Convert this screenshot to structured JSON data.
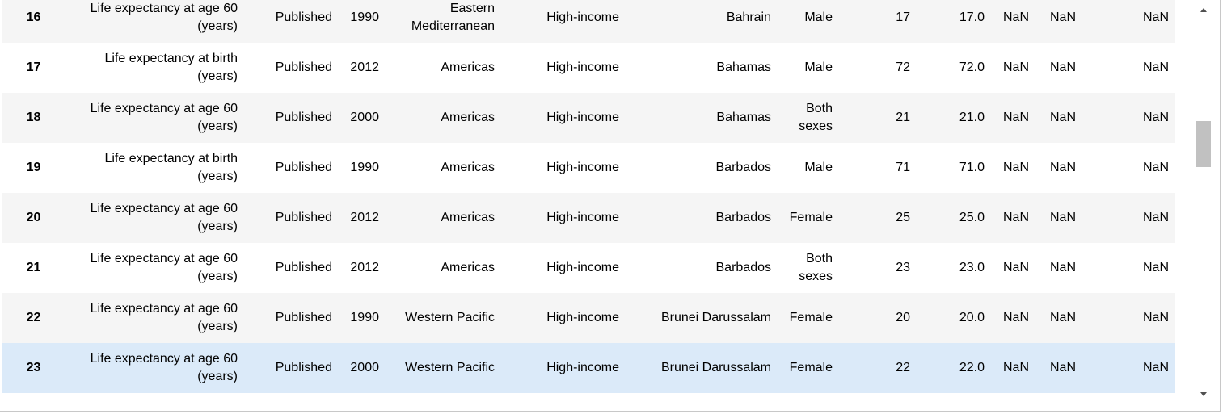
{
  "table": {
    "rows": [
      [
        "16",
        "Life expectancy at age 60 (years)",
        "Published",
        "1990",
        "Eastern Mediterranean",
        "High-income",
        "Bahrain",
        "Male",
        "17",
        "17.0",
        "NaN",
        "NaN",
        "NaN"
      ],
      [
        "17",
        "Life expectancy at birth (years)",
        "Published",
        "2012",
        "Americas",
        "High-income",
        "Bahamas",
        "Male",
        "72",
        "72.0",
        "NaN",
        "NaN",
        "NaN"
      ],
      [
        "18",
        "Life expectancy at age 60 (years)",
        "Published",
        "2000",
        "Americas",
        "High-income",
        "Bahamas",
        "Both sexes",
        "21",
        "21.0",
        "NaN",
        "NaN",
        "NaN"
      ],
      [
        "19",
        "Life expectancy at birth (years)",
        "Published",
        "1990",
        "Americas",
        "High-income",
        "Barbados",
        "Male",
        "71",
        "71.0",
        "NaN",
        "NaN",
        "NaN"
      ],
      [
        "20",
        "Life expectancy at age 60 (years)",
        "Published",
        "2012",
        "Americas",
        "High-income",
        "Barbados",
        "Female",
        "25",
        "25.0",
        "NaN",
        "NaN",
        "NaN"
      ],
      [
        "21",
        "Life expectancy at age 60 (years)",
        "Published",
        "2012",
        "Americas",
        "High-income",
        "Barbados",
        "Both sexes",
        "23",
        "23.0",
        "NaN",
        "NaN",
        "NaN"
      ],
      [
        "22",
        "Life expectancy at age 60 (years)",
        "Published",
        "1990",
        "Western Pacific",
        "High-income",
        "Brunei Darussalam",
        "Female",
        "20",
        "20.0",
        "NaN",
        "NaN",
        "NaN"
      ],
      [
        "23",
        "Life expectancy at age 60 (years)",
        "Published",
        "2000",
        "Western Pacific",
        "High-income",
        "Brunei Darussalam",
        "Female",
        "22",
        "22.0",
        "NaN",
        "NaN",
        "NaN"
      ]
    ]
  }
}
